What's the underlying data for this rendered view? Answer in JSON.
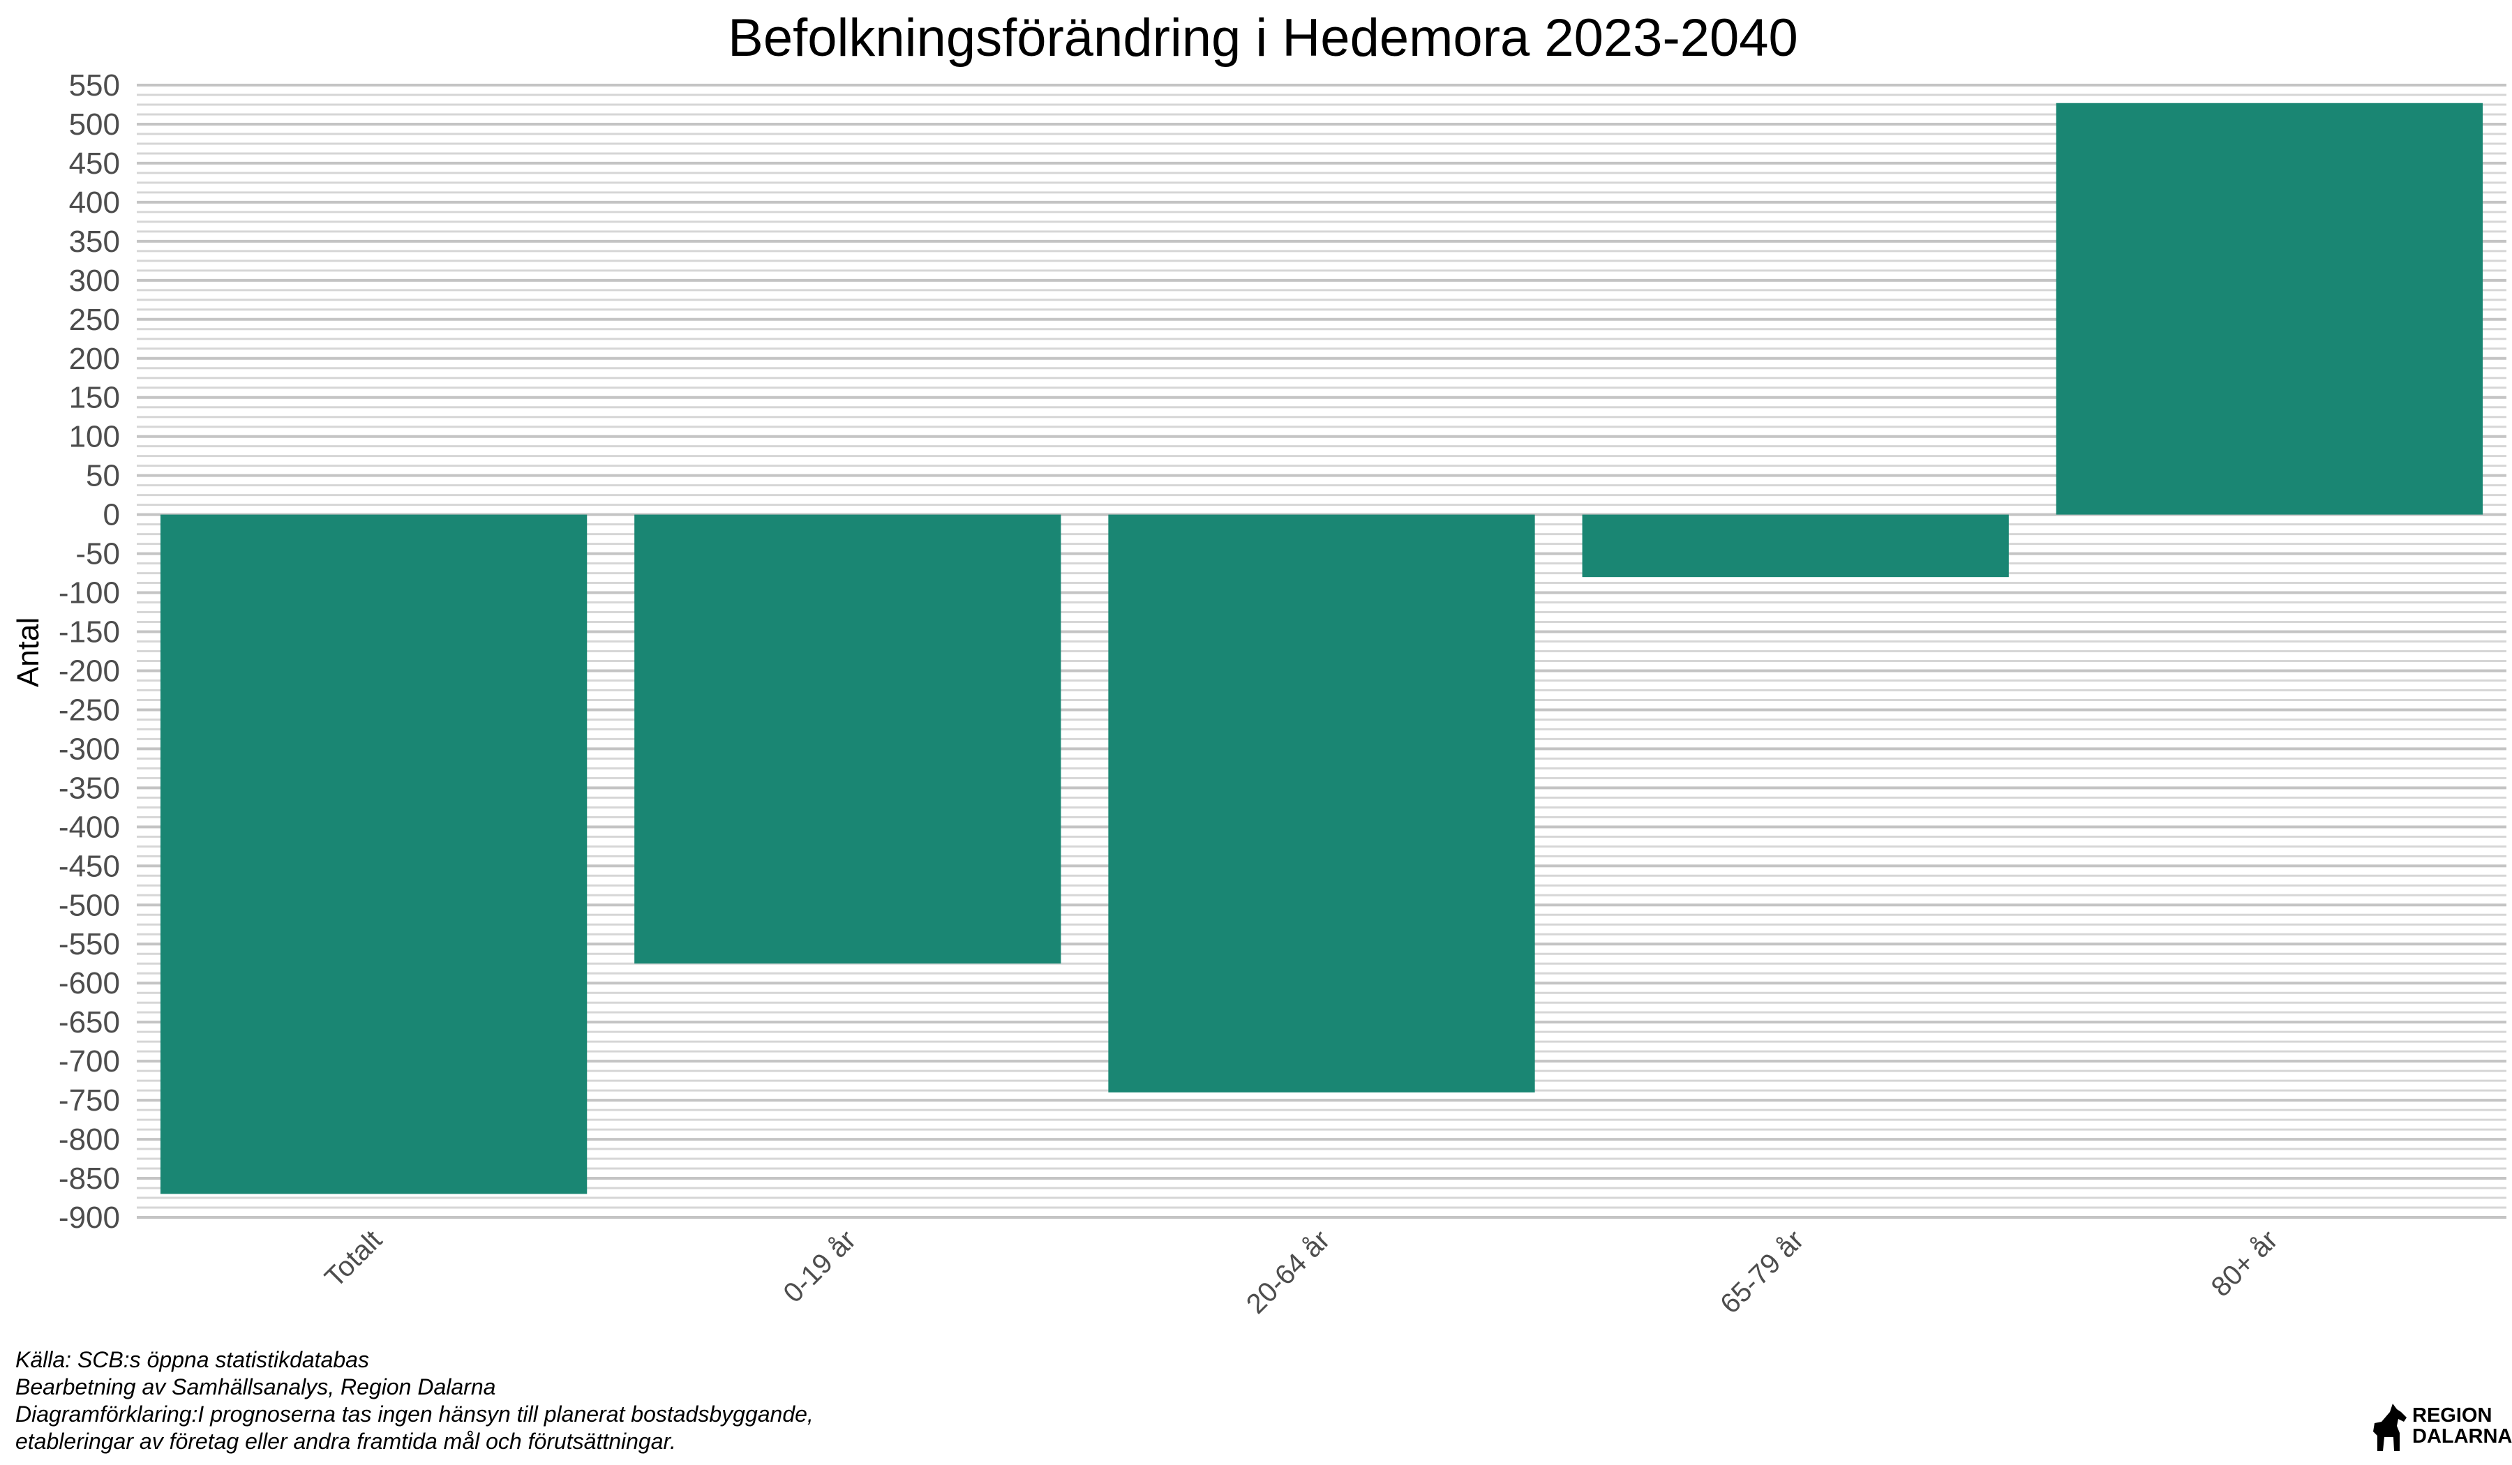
{
  "chart_data": {
    "type": "bar",
    "title": "Befolkningsförändring i Hedemora 2023-2040",
    "ylabel": "Antal",
    "xlabel": "",
    "categories": [
      "Totalt",
      "0-19 år",
      "20-64 år",
      "65-79 år",
      "80+ år"
    ],
    "values": [
      -870,
      -575,
      -740,
      -80,
      527
    ],
    "ylim": [
      -900,
      550
    ],
    "y_tick_step": 50,
    "grid": true,
    "bar_color": "#1a8673"
  },
  "caption": {
    "lines": [
      "Källa: SCB:s öppna statistikdatabas",
      "Bearbetning av Samhällsanalys, Region Dalarna",
      "Diagramförklaring:I prognoserna tas ingen hänsyn till planerat bostadsbyggande,",
      "etableringar av företag eller andra framtida mål och förutsättningar."
    ]
  },
  "logo": {
    "line1": "REGION",
    "line2": "DALARNA"
  }
}
